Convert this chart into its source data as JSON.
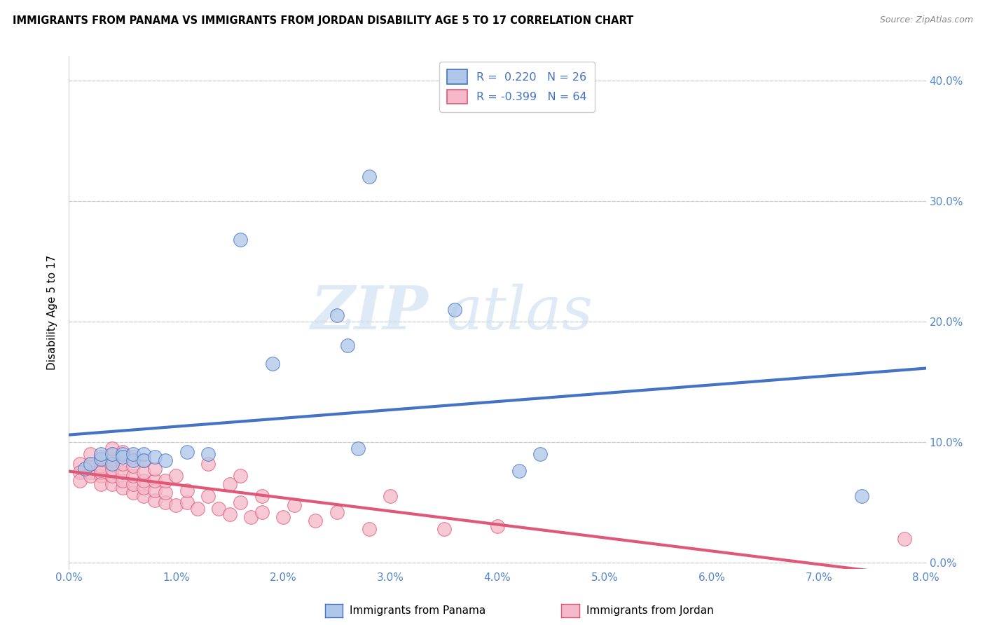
{
  "title": "IMMIGRANTS FROM PANAMA VS IMMIGRANTS FROM JORDAN DISABILITY AGE 5 TO 17 CORRELATION CHART",
  "source": "Source: ZipAtlas.com",
  "ylabel": "Disability Age 5 to 17",
  "r_panama": 0.22,
  "n_panama": 26,
  "r_jordan": -0.399,
  "n_jordan": 64,
  "xlim": [
    0.0,
    0.08
  ],
  "ylim": [
    -0.005,
    0.42
  ],
  "xticks": [
    0.0,
    0.01,
    0.02,
    0.03,
    0.04,
    0.05,
    0.06,
    0.07,
    0.08
  ],
  "xticklabels": [
    "0.0%",
    "1.0%",
    "2.0%",
    "3.0%",
    "4.0%",
    "5.0%",
    "6.0%",
    "7.0%",
    "8.0%"
  ],
  "yticks_right": [
    0.0,
    0.1,
    0.2,
    0.3,
    0.4
  ],
  "yticklabels_right": [
    "0.0%",
    "10.0%",
    "20.0%",
    "30.0%",
    "40.0%"
  ],
  "grid_color": "#cccccc",
  "background_color": "#ffffff",
  "panama_color": "#aec6e8",
  "jordan_color": "#f4b8c8",
  "panama_line_color": "#4472c4",
  "jordan_line_color": "#e05878",
  "watermark_color": "#c8ddf0",
  "panama_x": [
    0.0015,
    0.002,
    0.003,
    0.003,
    0.004,
    0.004,
    0.005,
    0.005,
    0.006,
    0.006,
    0.007,
    0.007,
    0.008,
    0.009,
    0.011,
    0.013,
    0.016,
    0.019,
    0.025,
    0.026,
    0.027,
    0.028,
    0.036,
    0.042,
    0.044,
    0.074
  ],
  "panama_y": [
    0.078,
    0.082,
    0.086,
    0.09,
    0.082,
    0.09,
    0.09,
    0.088,
    0.085,
    0.09,
    0.09,
    0.085,
    0.088,
    0.085,
    0.092,
    0.09,
    0.268,
    0.165,
    0.205,
    0.18,
    0.095,
    0.32,
    0.21,
    0.076,
    0.09,
    0.055
  ],
  "jordan_x": [
    0.001,
    0.001,
    0.001,
    0.002,
    0.002,
    0.002,
    0.002,
    0.003,
    0.003,
    0.003,
    0.003,
    0.003,
    0.004,
    0.004,
    0.004,
    0.004,
    0.004,
    0.004,
    0.005,
    0.005,
    0.005,
    0.005,
    0.005,
    0.006,
    0.006,
    0.006,
    0.006,
    0.006,
    0.007,
    0.007,
    0.007,
    0.007,
    0.007,
    0.008,
    0.008,
    0.008,
    0.008,
    0.009,
    0.009,
    0.009,
    0.01,
    0.01,
    0.011,
    0.011,
    0.012,
    0.013,
    0.013,
    0.014,
    0.015,
    0.015,
    0.016,
    0.016,
    0.017,
    0.018,
    0.018,
    0.02,
    0.021,
    0.023,
    0.025,
    0.028,
    0.03,
    0.035,
    0.04,
    0.078
  ],
  "jordan_y": [
    0.082,
    0.075,
    0.068,
    0.075,
    0.072,
    0.082,
    0.09,
    0.072,
    0.08,
    0.075,
    0.065,
    0.088,
    0.065,
    0.072,
    0.078,
    0.085,
    0.09,
    0.095,
    0.062,
    0.068,
    0.075,
    0.082,
    0.092,
    0.058,
    0.065,
    0.072,
    0.08,
    0.088,
    0.055,
    0.062,
    0.068,
    0.075,
    0.085,
    0.052,
    0.06,
    0.068,
    0.078,
    0.05,
    0.058,
    0.068,
    0.048,
    0.072,
    0.05,
    0.06,
    0.045,
    0.055,
    0.082,
    0.045,
    0.04,
    0.065,
    0.05,
    0.072,
    0.038,
    0.042,
    0.055,
    0.038,
    0.048,
    0.035,
    0.042,
    0.028,
    0.055,
    0.028,
    0.03,
    0.02
  ]
}
